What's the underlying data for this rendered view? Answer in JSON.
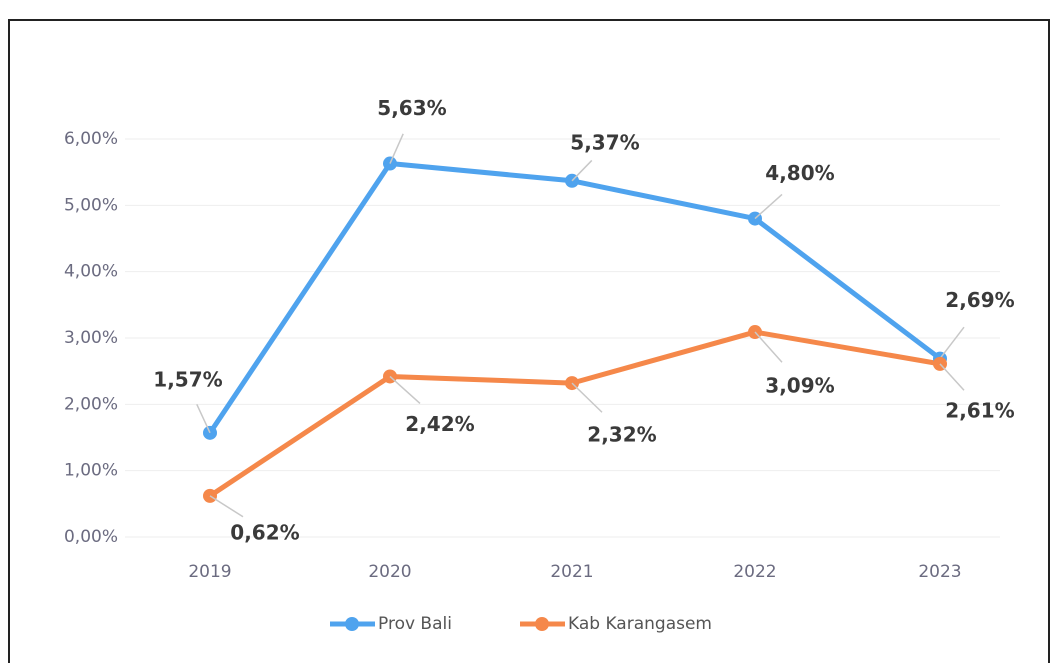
{
  "chart_data": {
    "type": "line",
    "categories": [
      "2019",
      "2020",
      "2021",
      "2022",
      "2023"
    ],
    "series": [
      {
        "name": "Prov Bali",
        "color": "#4fa3ee",
        "values": [
          1.57,
          5.63,
          5.37,
          4.8,
          2.69
        ],
        "value_labels": [
          "1,57%",
          "5,63%",
          "5,37%",
          "4,80%",
          "2,69%"
        ]
      },
      {
        "name": "Kab Karangasem",
        "color": "#f5884a",
        "values": [
          0.62,
          2.42,
          2.32,
          3.09,
          2.61
        ],
        "value_labels": [
          "0,62%",
          "2,42%",
          "2,32%",
          "3,09%",
          "2,61%"
        ]
      }
    ],
    "ylim": [
      0,
      6
    ],
    "yticks": [
      {
        "value": 0,
        "label": "0,00%"
      },
      {
        "value": 1,
        "label": "1,00%"
      },
      {
        "value": 2,
        "label": "2,00%"
      },
      {
        "value": 3,
        "label": "3,00%"
      },
      {
        "value": 4,
        "label": "4,00%"
      },
      {
        "value": 5,
        "label": "5,00%"
      },
      {
        "value": 6,
        "label": "6,00%"
      }
    ],
    "grid": true,
    "legend": "bottom"
  }
}
